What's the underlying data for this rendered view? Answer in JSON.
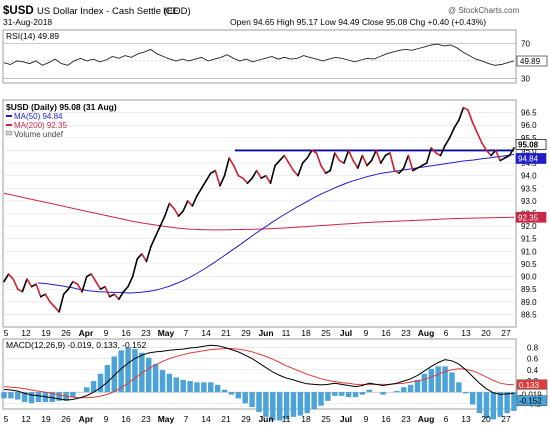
{
  "header": {
    "symbol": "$USD",
    "name": "US Dollar Index - Cash Settle (EOD)",
    "exchange": "ICE",
    "date": "31-Aug-2018",
    "quote": "Open 94.65  High 95.17  Low 94.49  Close 95.08  Chg +0.40 (+0.43%)",
    "watermark": "@ StockCharts.com"
  },
  "chart_data": [
    {
      "type": "line",
      "panel": "rsi",
      "title": "RSI(14) 49.89",
      "last": 49.89,
      "ylim": [
        25,
        85
      ],
      "ticks": [
        30,
        50,
        70
      ],
      "overbought": 70,
      "oversold": 30,
      "values": [
        48,
        46,
        50,
        49,
        47,
        50,
        45,
        48,
        52,
        47,
        45,
        50,
        53,
        50,
        52,
        49,
        51,
        55,
        53,
        56,
        54,
        58,
        60,
        63,
        58,
        55,
        52,
        50,
        52,
        50,
        52,
        54,
        50,
        52,
        54,
        57,
        53,
        50,
        52,
        49,
        51,
        53,
        55,
        52,
        54,
        52,
        53,
        56,
        54,
        52,
        50,
        52,
        54,
        53,
        51,
        49,
        51,
        53,
        52,
        55,
        58,
        60,
        62,
        63,
        62,
        64,
        66,
        68,
        69,
        67,
        68,
        65,
        60,
        56,
        52,
        50,
        47,
        45,
        46,
        48,
        50
      ]
    },
    {
      "type": "line",
      "panel": "price",
      "title": "$USD (Daily) 95.08 (31 Aug)",
      "ylim": [
        88.0,
        97.0
      ],
      "ticks": [
        88.5,
        89.0,
        89.5,
        90.0,
        90.5,
        91.0,
        91.5,
        92.0,
        92.5,
        93.0,
        93.5,
        94.0,
        94.5,
        95.0,
        95.5,
        96.0,
        96.5
      ],
      "x_labels": [
        "5",
        "12",
        "19",
        "26",
        "Apr",
        "9",
        "16",
        "23",
        "May",
        "7",
        "14",
        "21",
        "29",
        "Jun",
        "11",
        "18",
        "25",
        "Jul",
        "9",
        "16",
        "23",
        "Aug",
        "6",
        "13",
        "20",
        "27"
      ],
      "series": [
        {
          "name": "$USD (Daily) 95.08 (31 Aug)",
          "color": "#000000",
          "values": [
            89.8,
            90.1,
            89.9,
            89.5,
            89.4,
            89.9,
            89.6,
            89.7,
            89.2,
            89.3,
            89.0,
            88.8,
            88.6,
            89.3,
            89.5,
            89.8,
            89.7,
            89.4,
            90.0,
            90.1,
            89.8,
            89.5,
            89.6,
            89.2,
            89.3,
            89.1,
            89.4,
            89.6,
            90.0,
            90.7,
            90.9,
            90.6,
            91.2,
            91.6,
            92.0,
            92.4,
            92.9,
            92.7,
            92.4,
            92.6,
            93.0,
            92.8,
            93.2,
            93.5,
            93.8,
            94.1,
            94.2,
            93.6,
            94.0,
            94.7,
            94.4,
            94.0,
            93.9,
            93.7,
            93.9,
            94.2,
            93.9,
            94.0,
            93.7,
            94.4,
            94.6,
            94.8,
            94.5,
            94.2,
            94.0,
            94.5,
            94.7,
            95.0,
            94.9,
            94.4,
            94.1,
            94.2,
            94.9,
            94.6,
            94.5,
            95.0,
            94.6,
            94.3,
            94.8,
            94.4,
            94.6,
            95.0,
            94.5,
            94.8,
            94.9,
            94.2,
            94.1,
            94.3,
            94.8,
            94.2,
            94.3,
            94.4,
            94.5,
            95.1,
            94.9,
            94.8,
            95.2,
            95.5,
            95.9,
            96.2,
            96.7,
            96.6,
            96.1,
            95.7,
            95.3,
            95.0,
            94.8,
            95.0,
            94.6,
            94.7,
            94.8,
            95.1
          ]
        },
        {
          "name": "MA(50) 94.84",
          "color": "#1e1ec8",
          "values": [
            89.75,
            89.73,
            89.71,
            89.68,
            89.65,
            89.62,
            89.58,
            89.55,
            89.5,
            89.47,
            89.44,
            89.42,
            89.4,
            89.39,
            89.38,
            89.37,
            89.37,
            89.36,
            89.35,
            89.36,
            89.37,
            89.39,
            89.42,
            89.45,
            89.5,
            89.56,
            89.62,
            89.7,
            89.78,
            89.87,
            89.97,
            90.08,
            90.2,
            90.32,
            90.45,
            90.58,
            90.72,
            90.86,
            91.0,
            91.14,
            91.28,
            91.42,
            91.57,
            91.71,
            91.85,
            91.98,
            92.12,
            92.25,
            92.38,
            92.5,
            92.62,
            92.74,
            92.85,
            92.96,
            93.07,
            93.18,
            93.28,
            93.37,
            93.46,
            93.55,
            93.63,
            93.71,
            93.78,
            93.84,
            93.9,
            93.96,
            94.01,
            94.06,
            94.1,
            94.13,
            94.16,
            94.19,
            94.22,
            94.25,
            94.28,
            94.31,
            94.34,
            94.37,
            94.4,
            94.43,
            94.46,
            94.49,
            94.52,
            94.55,
            94.58,
            94.6,
            94.62,
            94.65,
            94.68,
            94.7,
            94.73,
            94.75,
            94.78,
            94.81,
            94.84
          ]
        },
        {
          "name": "MA(200) 92.35",
          "color": "#c82846",
          "values": [
            93.3,
            93.2,
            93.1,
            93.0,
            92.9,
            92.8,
            92.7,
            92.6,
            92.5,
            92.4,
            92.3,
            92.2,
            92.12,
            92.05,
            91.98,
            91.92,
            91.88,
            91.86,
            91.85,
            91.85,
            91.86,
            91.87,
            91.88,
            91.9,
            91.92,
            91.95,
            91.98,
            92.01,
            92.04,
            92.07,
            92.1,
            92.13,
            92.16,
            92.18,
            92.2,
            92.22,
            92.24,
            92.26,
            92.28,
            92.3,
            92.31,
            92.32,
            92.33,
            92.34,
            92.35
          ]
        }
      ],
      "labels": {
        "ma50": "MA(50) 94.84",
        "ma200": "MA(200) 92.35",
        "volume": "Volume undef"
      },
      "resistance": 95.0,
      "last_tags": {
        "close": "95.08",
        "ma50": "94.84",
        "ma200": "92.35"
      }
    },
    {
      "type": "line",
      "panel": "macd",
      "title": "MACD(12,26,9) -0.019, 0.133, -0.152",
      "ylim": [
        -0.3,
        0.95
      ],
      "ticks": [
        -0.2,
        0.0,
        0.2,
        0.4,
        0.6,
        0.8
      ],
      "x_labels": [
        "5",
        "12",
        "19",
        "26",
        "Apr",
        "9",
        "16",
        "23",
        "May",
        "7",
        "14",
        "21",
        "29",
        "Jun",
        "11",
        "18",
        "25",
        "Jul",
        "9",
        "16",
        "23",
        "Aug",
        "6",
        "13",
        "20",
        "27"
      ],
      "series": [
        {
          "name": "MACD",
          "color": "#000000",
          "values": [
            0.05,
            0.04,
            0.02,
            -0.02,
            -0.05,
            -0.06,
            -0.08,
            -0.1,
            -0.12,
            -0.14,
            -0.13,
            -0.1,
            -0.06,
            0.0,
            0.08,
            0.18,
            0.3,
            0.42,
            0.52,
            0.6,
            0.66,
            0.7,
            0.72,
            0.73,
            0.75,
            0.76,
            0.77,
            0.79,
            0.8,
            0.82,
            0.84,
            0.83,
            0.8,
            0.76,
            0.72,
            0.66,
            0.6,
            0.52,
            0.44,
            0.36,
            0.3,
            0.25,
            0.22,
            0.18,
            0.15,
            0.14,
            0.13,
            0.14,
            0.16,
            0.14,
            0.12,
            0.1,
            0.12,
            0.16,
            0.14,
            0.12,
            0.14,
            0.16,
            0.2,
            0.24,
            0.3,
            0.38,
            0.46,
            0.53,
            0.58,
            0.56,
            0.5,
            0.4,
            0.28,
            0.16,
            0.06,
            -0.01,
            -0.04,
            -0.03,
            -0.019
          ]
        },
        {
          "name": "Signal",
          "color": "#e03c3c",
          "values": [
            0.1,
            0.09,
            0.08,
            0.06,
            0.04,
            0.02,
            0.0,
            -0.02,
            -0.05,
            -0.07,
            -0.09,
            -0.1,
            -0.1,
            -0.09,
            -0.07,
            -0.04,
            0.01,
            0.08,
            0.16,
            0.25,
            0.34,
            0.42,
            0.49,
            0.55,
            0.6,
            0.64,
            0.67,
            0.7,
            0.72,
            0.74,
            0.76,
            0.77,
            0.78,
            0.78,
            0.77,
            0.75,
            0.72,
            0.68,
            0.64,
            0.59,
            0.53,
            0.47,
            0.42,
            0.37,
            0.32,
            0.28,
            0.24,
            0.21,
            0.19,
            0.17,
            0.16,
            0.14,
            0.14,
            0.14,
            0.14,
            0.14,
            0.14,
            0.15,
            0.16,
            0.18,
            0.2,
            0.23,
            0.27,
            0.32,
            0.37,
            0.4,
            0.42,
            0.41,
            0.38,
            0.33,
            0.27,
            0.21,
            0.16,
            0.14,
            0.133
          ]
        }
      ],
      "last_tags": {
        "signal": "0.133",
        "macd": "-0.019",
        "hist": "-0.152"
      }
    }
  ],
  "colors": {
    "close_up": "#000000",
    "close_down": "#d21e2d",
    "ma50": "#1e1ec8",
    "ma200": "#c82846",
    "resistance": "#0a0aa0",
    "rsi_fill": "#1f7a3a",
    "hist": "#4ba3d8"
  }
}
